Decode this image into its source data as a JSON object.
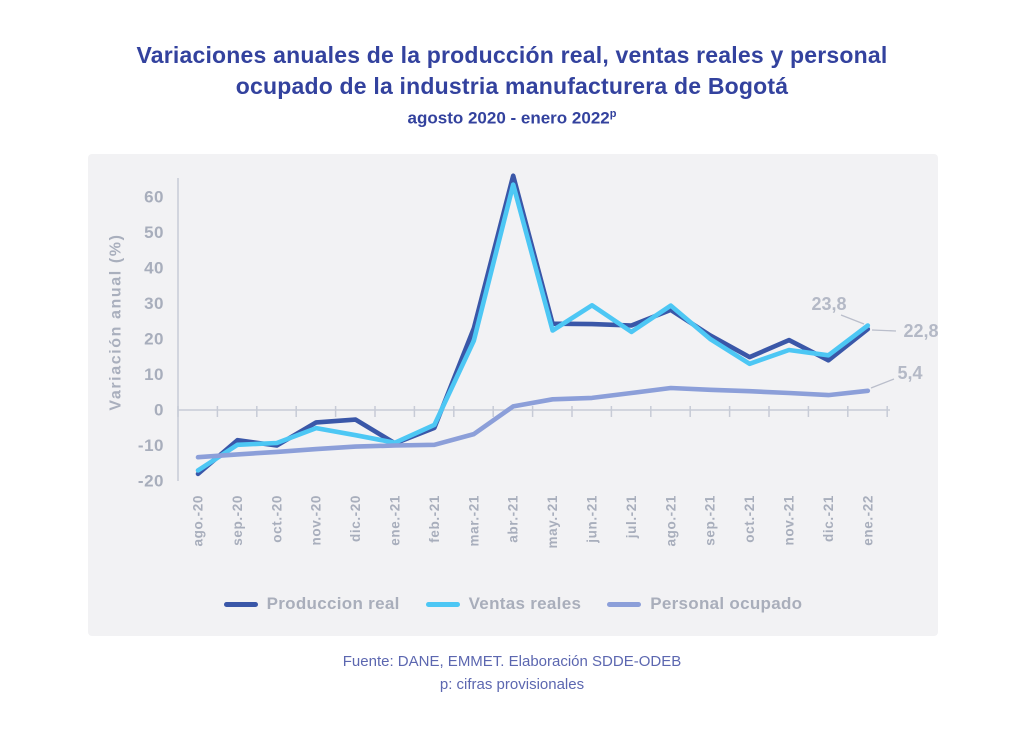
{
  "page": {
    "title_line1": "Variaciones anuales de la producción real, ventas reales y personal",
    "title_line2": "ocupado de la industria manufacturera de Bogotá",
    "subtitle": "agosto 2020 - enero 2022",
    "subtitle_superscript": "p"
  },
  "footer": {
    "line1": "Fuente: DANE, EMMET. Elaboración SDDE-ODEB",
    "line2": "p: cifras provisionales"
  },
  "colors": {
    "title": "#33429e",
    "footer_text": "#5c67b0",
    "card_background": "#f2f2f4",
    "axis": "#c7cbd6",
    "axis_text": "#a8aebc",
    "annotation_text": "#b4b9c6",
    "produccion_real": "#3a57a8",
    "ventas_reales": "#4dc7f4",
    "personal_ocupado": "#8c9fd9"
  },
  "chart_data": {
    "type": "line",
    "title": "Variaciones anuales de la producción real, ventas reales y personal ocupado de la industria manufacturera de Bogotá, agosto 2020 - enero 2022p",
    "xlabel": "",
    "ylabel": "Variación anual (%)",
    "ylim": [
      -20,
      66
    ],
    "yticks": [
      60,
      50,
      40,
      30,
      20,
      10,
      0,
      -10,
      -20
    ],
    "grid": false,
    "legend_position": "bottom",
    "categories": [
      "ago.-20",
      "sep.-20",
      "oct.-20",
      "nov.-20",
      "dic.-20",
      "ene.-21",
      "feb.-21",
      "mar.-21",
      "abr.-21",
      "may.-21",
      "jun.-21",
      "jul.-21",
      "ago.-21",
      "sep.-21",
      "oct.-21",
      "nov.-21",
      "dic.-21",
      "ene.-22"
    ],
    "series": [
      {
        "name": "Produccion real",
        "color": "#3a57a8",
        "values": [
          -18.0,
          -8.5,
          -10.0,
          -3.5,
          -2.7,
          -9.4,
          -5.0,
          23.0,
          66.0,
          24.3,
          24.2,
          23.8,
          28.2,
          21.0,
          14.9,
          19.7,
          14.0,
          22.8
        ]
      },
      {
        "name": "Ventas reales",
        "color": "#4dc7f4",
        "values": [
          -17.0,
          -9.8,
          -9.3,
          -5.1,
          -7.1,
          -9.2,
          -4.2,
          19.5,
          63.5,
          22.4,
          29.5,
          22.0,
          29.4,
          20.0,
          13.0,
          16.9,
          15.4,
          23.8
        ]
      },
      {
        "name": "Personal ocupado",
        "color": "#8c9fd9",
        "values": [
          -13.3,
          -12.5,
          -11.8,
          -11.0,
          -10.3,
          -10.0,
          -9.8,
          -6.8,
          1.0,
          3.0,
          3.4,
          4.8,
          6.2,
          5.7,
          5.3,
          4.8,
          4.2,
          5.4
        ]
      }
    ],
    "annotations": [
      {
        "label": "23,8",
        "series": "Ventas reales",
        "category": "ene.-22",
        "value": 23.8
      },
      {
        "label": "22,8",
        "series": "Produccion real",
        "category": "ene.-22",
        "value": 22.8
      },
      {
        "label": "5,4",
        "series": "Personal ocupado",
        "category": "ene.-22",
        "value": 5.4
      }
    ]
  }
}
